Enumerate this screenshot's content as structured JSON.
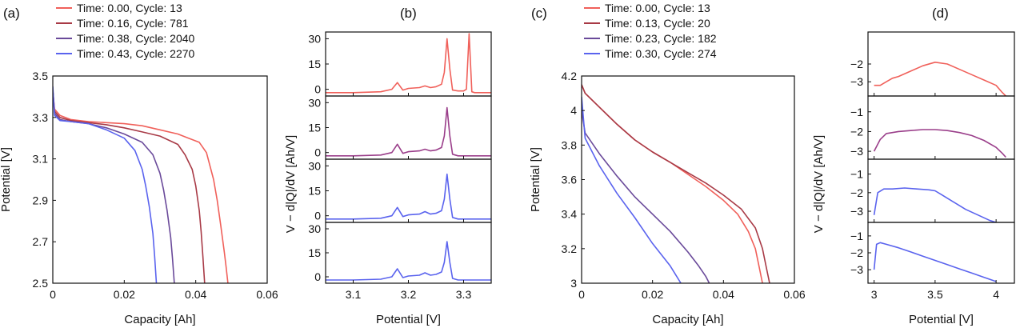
{
  "chart_data": [
    {
      "id": "a",
      "type": "line",
      "panel_label": "(a)",
      "xlabel": "Capacity [Ah]",
      "ylabel": "Potential [V]",
      "xlim": [
        0,
        0.06
      ],
      "ylim": [
        2.5,
        3.5
      ],
      "xticks": [
        0,
        0.02,
        0.04,
        0.06
      ],
      "xtick_labels": [
        "0",
        "0.02",
        "0.04",
        "0.06"
      ],
      "yticks": [
        2.5,
        2.7,
        2.9,
        3.1,
        3.3,
        3.5
      ],
      "ytick_labels": [
        "2.5",
        "2.7",
        "2.9",
        "3.1",
        "3.3",
        "3.5"
      ],
      "legend_position": "above",
      "series": [
        {
          "name": "Time: 0.00, Cycle: 13",
          "color": "#f0605a",
          "x": [
            0,
            0.0005,
            0.002,
            0.005,
            0.01,
            0.015,
            0.02,
            0.025,
            0.03,
            0.035,
            0.038,
            0.041,
            0.043,
            0.045,
            0.046,
            0.047,
            0.048,
            0.0485,
            0.049
          ],
          "y": [
            3.43,
            3.34,
            3.31,
            3.29,
            3.28,
            3.275,
            3.27,
            3.26,
            3.24,
            3.22,
            3.2,
            3.18,
            3.13,
            3.0,
            2.9,
            2.78,
            2.65,
            2.58,
            2.5
          ]
        },
        {
          "name": "Time: 0.16, Cycle: 781",
          "color": "#a83a46",
          "x": [
            0,
            0.0005,
            0.002,
            0.005,
            0.01,
            0.015,
            0.02,
            0.025,
            0.03,
            0.035,
            0.037,
            0.039,
            0.04,
            0.041,
            0.0415,
            0.042,
            0.0425
          ],
          "y": [
            3.43,
            3.33,
            3.3,
            3.285,
            3.275,
            3.265,
            3.25,
            3.23,
            3.21,
            3.17,
            3.12,
            3.05,
            2.97,
            2.85,
            2.75,
            2.63,
            2.5
          ]
        },
        {
          "name": "Time: 0.38, Cycle: 2040",
          "color": "#6a4a9a",
          "x": [
            0,
            0.0005,
            0.002,
            0.005,
            0.01,
            0.015,
            0.02,
            0.025,
            0.028,
            0.03,
            0.031,
            0.032,
            0.033,
            0.0335,
            0.034
          ],
          "y": [
            3.43,
            3.32,
            3.29,
            3.28,
            3.27,
            3.25,
            3.22,
            3.18,
            3.12,
            3.03,
            2.95,
            2.85,
            2.72,
            2.62,
            2.5
          ]
        },
        {
          "name": "Time: 0.43, Cycle: 2270",
          "color": "#5a63ee",
          "x": [
            0,
            0.0005,
            0.002,
            0.005,
            0.01,
            0.015,
            0.02,
            0.023,
            0.025,
            0.026,
            0.027,
            0.028,
            0.0285,
            0.029
          ],
          "y": [
            3.45,
            3.31,
            3.285,
            3.28,
            3.27,
            3.24,
            3.2,
            3.14,
            3.05,
            2.97,
            2.87,
            2.74,
            2.63,
            2.5
          ]
        }
      ]
    },
    {
      "id": "b",
      "type": "line",
      "panel_label": "(b)",
      "xlabel": "Potential [V]",
      "ylabel": "V − d|Q|/dV   [Ah/V]",
      "xlim": [
        3.05,
        3.35
      ],
      "xticks": [
        3.1,
        3.2,
        3.3
      ],
      "xtick_labels": [
        "3.1",
        "3.2",
        "3.3"
      ],
      "subplots": [
        {
          "ylim": [
            -4,
            34
          ],
          "yticks": [
            0,
            15,
            30
          ],
          "ytick_labels": [
            "0",
            "15",
            "30"
          ],
          "color": "#f0605a",
          "x": [
            3.05,
            3.1,
            3.15,
            3.17,
            3.18,
            3.19,
            3.2,
            3.22,
            3.23,
            3.24,
            3.25,
            3.26,
            3.265,
            3.27,
            3.275,
            3.28,
            3.29,
            3.3,
            3.305,
            3.31,
            3.315,
            3.32,
            3.35
          ],
          "y": [
            -2,
            -2,
            -1.5,
            0,
            4,
            -0.5,
            0.5,
            1,
            2,
            1,
            1.5,
            3,
            10,
            30,
            12,
            -0.5,
            -1,
            -1,
            0,
            33,
            -1.5,
            -2,
            -2
          ]
        },
        {
          "ylim": [
            -4,
            34
          ],
          "yticks": [
            0,
            15,
            30
          ],
          "ytick_labels": [
            "0",
            "15",
            "30"
          ],
          "color": "#9a3e8a",
          "x": [
            3.05,
            3.1,
            3.15,
            3.17,
            3.18,
            3.19,
            3.2,
            3.22,
            3.23,
            3.24,
            3.25,
            3.26,
            3.265,
            3.27,
            3.275,
            3.28,
            3.29,
            3.35
          ],
          "y": [
            -2,
            -2,
            -1.5,
            0,
            5,
            -0.5,
            0.5,
            1,
            2,
            1,
            1.5,
            3,
            10,
            27,
            10,
            -1,
            -2,
            -2
          ]
        },
        {
          "ylim": [
            -4,
            34
          ],
          "yticks": [
            0,
            15,
            30
          ],
          "ytick_labels": [
            "0",
            "15",
            "30"
          ],
          "color": "#5a63ee",
          "x": [
            3.05,
            3.1,
            3.15,
            3.17,
            3.18,
            3.19,
            3.2,
            3.22,
            3.23,
            3.24,
            3.25,
            3.26,
            3.265,
            3.27,
            3.275,
            3.28,
            3.29,
            3.35
          ],
          "y": [
            -2,
            -2,
            -1.5,
            0,
            5,
            -0.5,
            0.5,
            1,
            2.5,
            1,
            1.5,
            3,
            10,
            25,
            10,
            -1,
            -2,
            -2
          ]
        },
        {
          "ylim": [
            -4,
            34
          ],
          "yticks": [
            0,
            15,
            30
          ],
          "ytick_labels": [
            "0",
            "15",
            "30"
          ],
          "color": "#5a63ee",
          "x": [
            3.05,
            3.1,
            3.15,
            3.17,
            3.18,
            3.19,
            3.2,
            3.22,
            3.23,
            3.24,
            3.25,
            3.26,
            3.265,
            3.27,
            3.275,
            3.28,
            3.29,
            3.35
          ],
          "y": [
            -2,
            -2,
            -1.5,
            0,
            5,
            -0.5,
            0.5,
            1,
            2.5,
            1,
            1.5,
            3,
            9,
            22,
            9,
            -1,
            -2,
            -2
          ]
        }
      ]
    },
    {
      "id": "c",
      "type": "line",
      "panel_label": "(c)",
      "xlabel": "Capacity [Ah]",
      "ylabel": "Potential [V]",
      "xlim": [
        0,
        0.06
      ],
      "ylim": [
        3.0,
        4.2
      ],
      "xticks": [
        0,
        0.02,
        0.04,
        0.06
      ],
      "xtick_labels": [
        "0",
        "0.02",
        "0.04",
        "0.06"
      ],
      "yticks": [
        3.0,
        3.2,
        3.4,
        3.6,
        3.8,
        4.0,
        4.2
      ],
      "ytick_labels": [
        "3",
        "3.2",
        "3.4",
        "3.6",
        "3.8",
        "4",
        "4.2"
      ],
      "legend_position": "above",
      "series": [
        {
          "name": "Time: 0.00, Cycle: 13",
          "color": "#f0605a",
          "x": [
            0,
            0.001,
            0.005,
            0.01,
            0.015,
            0.02,
            0.025,
            0.03,
            0.035,
            0.04,
            0.044,
            0.047,
            0.049,
            0.05,
            0.051
          ],
          "y": [
            4.15,
            4.1,
            4.02,
            3.92,
            3.83,
            3.76,
            3.7,
            3.63,
            3.56,
            3.48,
            3.4,
            3.3,
            3.2,
            3.1,
            3.0
          ]
        },
        {
          "name": "Time: 0.13, Cycle: 20",
          "color": "#a83a46",
          "x": [
            0,
            0.001,
            0.005,
            0.01,
            0.015,
            0.02,
            0.025,
            0.03,
            0.035,
            0.04,
            0.045,
            0.049,
            0.051,
            0.052,
            0.053
          ],
          "y": [
            4.15,
            4.1,
            4.02,
            3.92,
            3.83,
            3.76,
            3.7,
            3.64,
            3.58,
            3.51,
            3.43,
            3.32,
            3.2,
            3.1,
            3.0
          ]
        },
        {
          "name": "Time: 0.23, Cycle: 182",
          "color": "#6a4a9a",
          "x": [
            0,
            0.001,
            0.005,
            0.01,
            0.015,
            0.02,
            0.025,
            0.03,
            0.033,
            0.035,
            0.036
          ],
          "y": [
            4.0,
            3.87,
            3.75,
            3.62,
            3.5,
            3.4,
            3.3,
            3.18,
            3.1,
            3.04,
            3.0
          ]
        },
        {
          "name": "Time: 0.30, Cycle: 274",
          "color": "#5a63ee",
          "x": [
            0,
            0.001,
            0.005,
            0.01,
            0.015,
            0.02,
            0.025,
            0.028
          ],
          "y": [
            4.08,
            3.84,
            3.68,
            3.52,
            3.38,
            3.23,
            3.1,
            3.0
          ]
        }
      ]
    },
    {
      "id": "d",
      "type": "line",
      "panel_label": "(d)",
      "xlabel": "Potential [V]",
      "ylabel": "V − d|Q|/dV   [Ah/V]",
      "xlim": [
        2.95,
        4.15
      ],
      "xticks": [
        3,
        3.5,
        4
      ],
      "xtick_labels": [
        "3",
        "3.5",
        "4"
      ],
      "subplots": [
        {
          "ylim": [
            -3.8,
            -0.2
          ],
          "yticks": [
            -3,
            -2
          ],
          "ytick_labels": [
            "−3",
            "−2"
          ],
          "color": "#f0605a",
          "x": [
            3.0,
            3.05,
            3.1,
            3.15,
            3.2,
            3.3,
            3.4,
            3.5,
            3.6,
            3.7,
            3.8,
            3.9,
            4.0,
            4.05,
            4.08
          ],
          "y": [
            -3.2,
            -3.2,
            -3.0,
            -2.8,
            -2.7,
            -2.4,
            -2.1,
            -1.9,
            -2.0,
            -2.3,
            -2.6,
            -2.9,
            -3.2,
            -3.6,
            -3.8
          ]
        },
        {
          "ylim": [
            -3.4,
            -0.2
          ],
          "yticks": [
            -3,
            -2,
            -1
          ],
          "ytick_labels": [
            "−3",
            "−2",
            "−1"
          ],
          "color": "#9a3e8a",
          "x": [
            3.0,
            3.05,
            3.1,
            3.2,
            3.3,
            3.4,
            3.5,
            3.6,
            3.7,
            3.8,
            3.9,
            4.0,
            4.05,
            4.08
          ],
          "y": [
            -3.0,
            -2.4,
            -2.1,
            -2.0,
            -1.95,
            -1.9,
            -1.9,
            -1.95,
            -2.05,
            -2.2,
            -2.45,
            -2.8,
            -3.1,
            -3.3
          ]
        },
        {
          "ylim": [
            -3.6,
            -0.2
          ],
          "yticks": [
            -3,
            -2,
            -1
          ],
          "ytick_labels": [
            "−3",
            "−2",
            "−1"
          ],
          "color": "#5a63ee",
          "x": [
            3.0,
            3.03,
            3.08,
            3.15,
            3.25,
            3.35,
            3.45,
            3.5,
            3.55,
            3.65,
            3.75,
            3.85,
            3.95,
            4.0
          ],
          "y": [
            -3.2,
            -2.0,
            -1.8,
            -1.8,
            -1.75,
            -1.8,
            -1.85,
            -1.9,
            -2.1,
            -2.5,
            -2.9,
            -3.2,
            -3.5,
            -3.6
          ]
        },
        {
          "ylim": [
            -3.8,
            -0.2
          ],
          "yticks": [
            -3,
            -2,
            -1
          ],
          "ytick_labels": [
            "−3",
            "−2",
            "−1"
          ],
          "color": "#5a63ee",
          "x": [
            3.0,
            3.02,
            3.05,
            3.1,
            3.2,
            3.3,
            3.4,
            3.5,
            3.6,
            3.7,
            3.8,
            3.9,
            4.0
          ],
          "y": [
            -3.0,
            -1.5,
            -1.4,
            -1.5,
            -1.7,
            -1.95,
            -2.2,
            -2.45,
            -2.7,
            -2.95,
            -3.2,
            -3.45,
            -3.7
          ]
        }
      ]
    }
  ]
}
